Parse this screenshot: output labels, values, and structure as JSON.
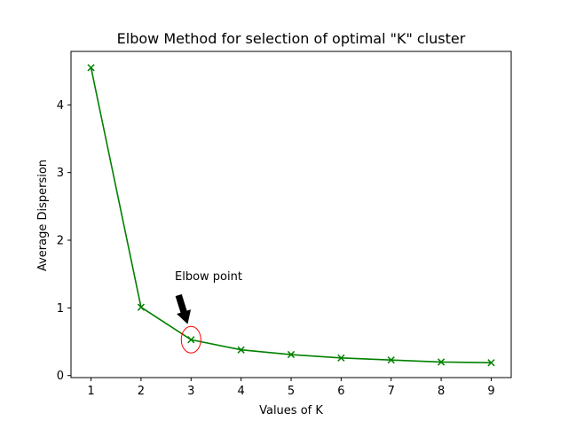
{
  "chart_data": {
    "type": "line",
    "title": "Elbow Method for selection of optimal \"K\" cluster",
    "xlabel": "Values of K",
    "ylabel": "Average Dispersion",
    "x": [
      1,
      2,
      3,
      4,
      5,
      6,
      7,
      8,
      9
    ],
    "series": [
      {
        "values": [
          4.55,
          1.01,
          0.53,
          0.38,
          0.31,
          0.26,
          0.23,
          0.2,
          0.19
        ],
        "color": "#008000",
        "marker": "x"
      }
    ],
    "xticks": [
      1,
      2,
      3,
      4,
      5,
      6,
      7,
      8,
      9
    ],
    "yticks": [
      0,
      1,
      2,
      3,
      4
    ],
    "xlim": [
      0.6,
      9.4
    ],
    "ylim": [
      -0.03,
      4.79
    ],
    "grid": false,
    "legend": "none",
    "annotation": {
      "text": "Elbow point",
      "point_x": 3,
      "point_y": 0.53,
      "arrow_color": "#000000",
      "circle_color": "#ff0000"
    }
  }
}
